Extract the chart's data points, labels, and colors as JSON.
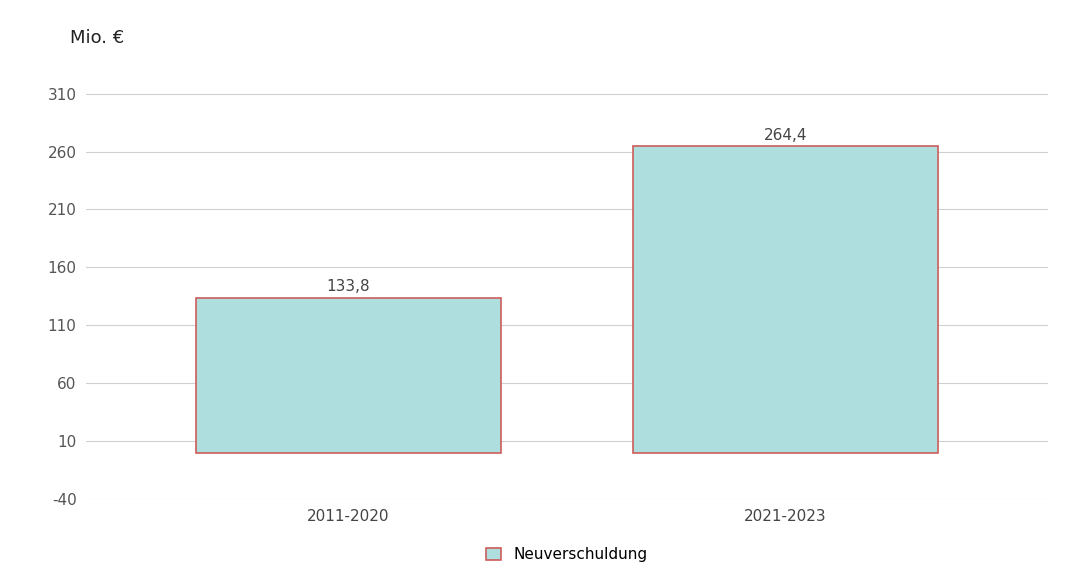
{
  "categories": [
    "2011-2020",
    "2021-2023"
  ],
  "values": [
    133.8,
    264.4
  ],
  "bar_color_fill": "#aedede",
  "bar_color_edge": "#cd5c5c",
  "title_label": "Mio. €",
  "ylim": [
    -40,
    330
  ],
  "yticks": [
    -40,
    10,
    60,
    110,
    160,
    210,
    260,
    310
  ],
  "legend_label": "Neuverschuldung",
  "legend_marker_color": "#cd5c5c",
  "background_color": "#ffffff",
  "grid_color": "#d0d0d0",
  "tick_fontsize": 11,
  "value_fontsize": 11,
  "title_fontsize": 13,
  "bar_width": 0.35,
  "x_positions": [
    0.25,
    0.75
  ]
}
